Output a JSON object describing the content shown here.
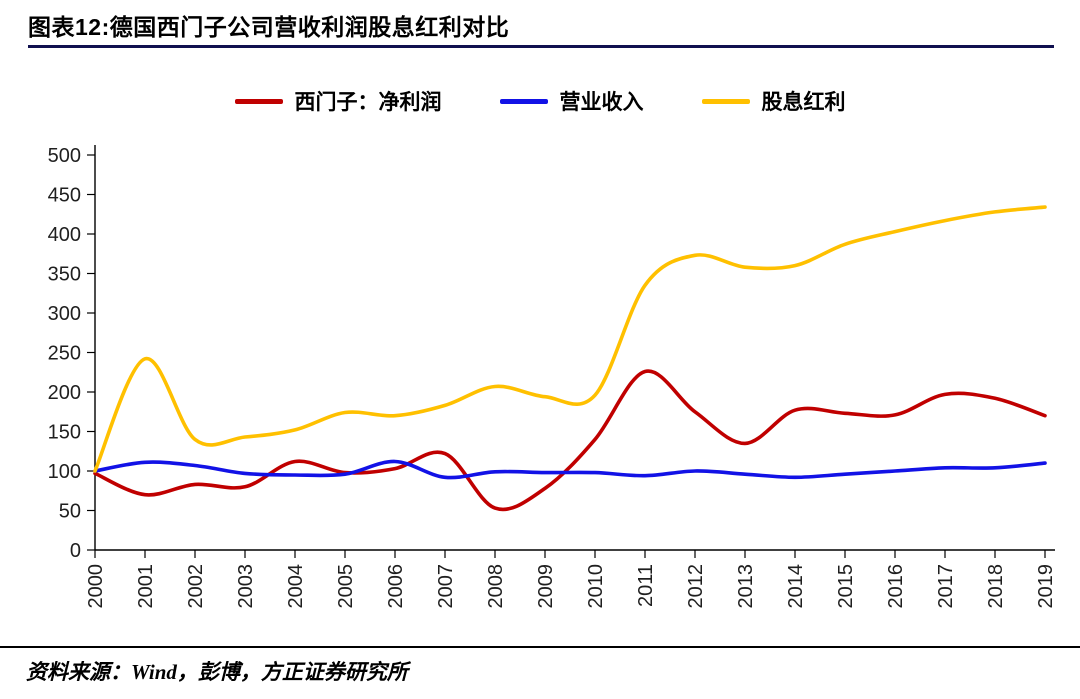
{
  "colors": {
    "title_rule": "#10104f",
    "footer_rule": "#000000",
    "axis": "#000000",
    "tick_text": "#1f1f1f"
  },
  "header": {
    "title": "图表12:德国西门子公司营收利润股息红利对比"
  },
  "footer": {
    "source": "资料来源：Wind，彭博，方正证券研究所"
  },
  "chart_data": {
    "type": "line",
    "title": "图表12:德国西门子公司营收利润股息红利对比",
    "categories": [
      "2000",
      "2001",
      "2002",
      "2003",
      "2004",
      "2005",
      "2006",
      "2007",
      "2008",
      "2009",
      "2010",
      "2011",
      "2012",
      "2013",
      "2014",
      "2015",
      "2016",
      "2017",
      "2018",
      "2019"
    ],
    "series": [
      {
        "id": "siemens-net-profit",
        "name": "西门子：净利润",
        "color": "#c00000",
        "values": [
          97,
          70,
          83,
          80,
          112,
          98,
          103,
          122,
          53,
          78,
          140,
          226,
          175,
          135,
          177,
          173,
          171,
          197,
          192,
          170
        ]
      },
      {
        "id": "operating-revenue",
        "name": "营业收入",
        "color": "#1212e6",
        "values": [
          100,
          111,
          107,
          97,
          95,
          96,
          112,
          92,
          99,
          98,
          98,
          94,
          100,
          96,
          92,
          96,
          100,
          104,
          104,
          110
        ]
      },
      {
        "id": "dividend",
        "name": "股息红利",
        "color": "#ffc000",
        "values": [
          100,
          242,
          140,
          143,
          152,
          174,
          170,
          183,
          207,
          194,
          196,
          335,
          373,
          358,
          360,
          387,
          403,
          417,
          428,
          434
        ]
      }
    ],
    "xlabel": "",
    "ylabel": "",
    "ylim": [
      0,
      500
    ],
    "ytick_step": 50,
    "legend_position": "top-center",
    "grid": false,
    "line_smoothing": true
  }
}
